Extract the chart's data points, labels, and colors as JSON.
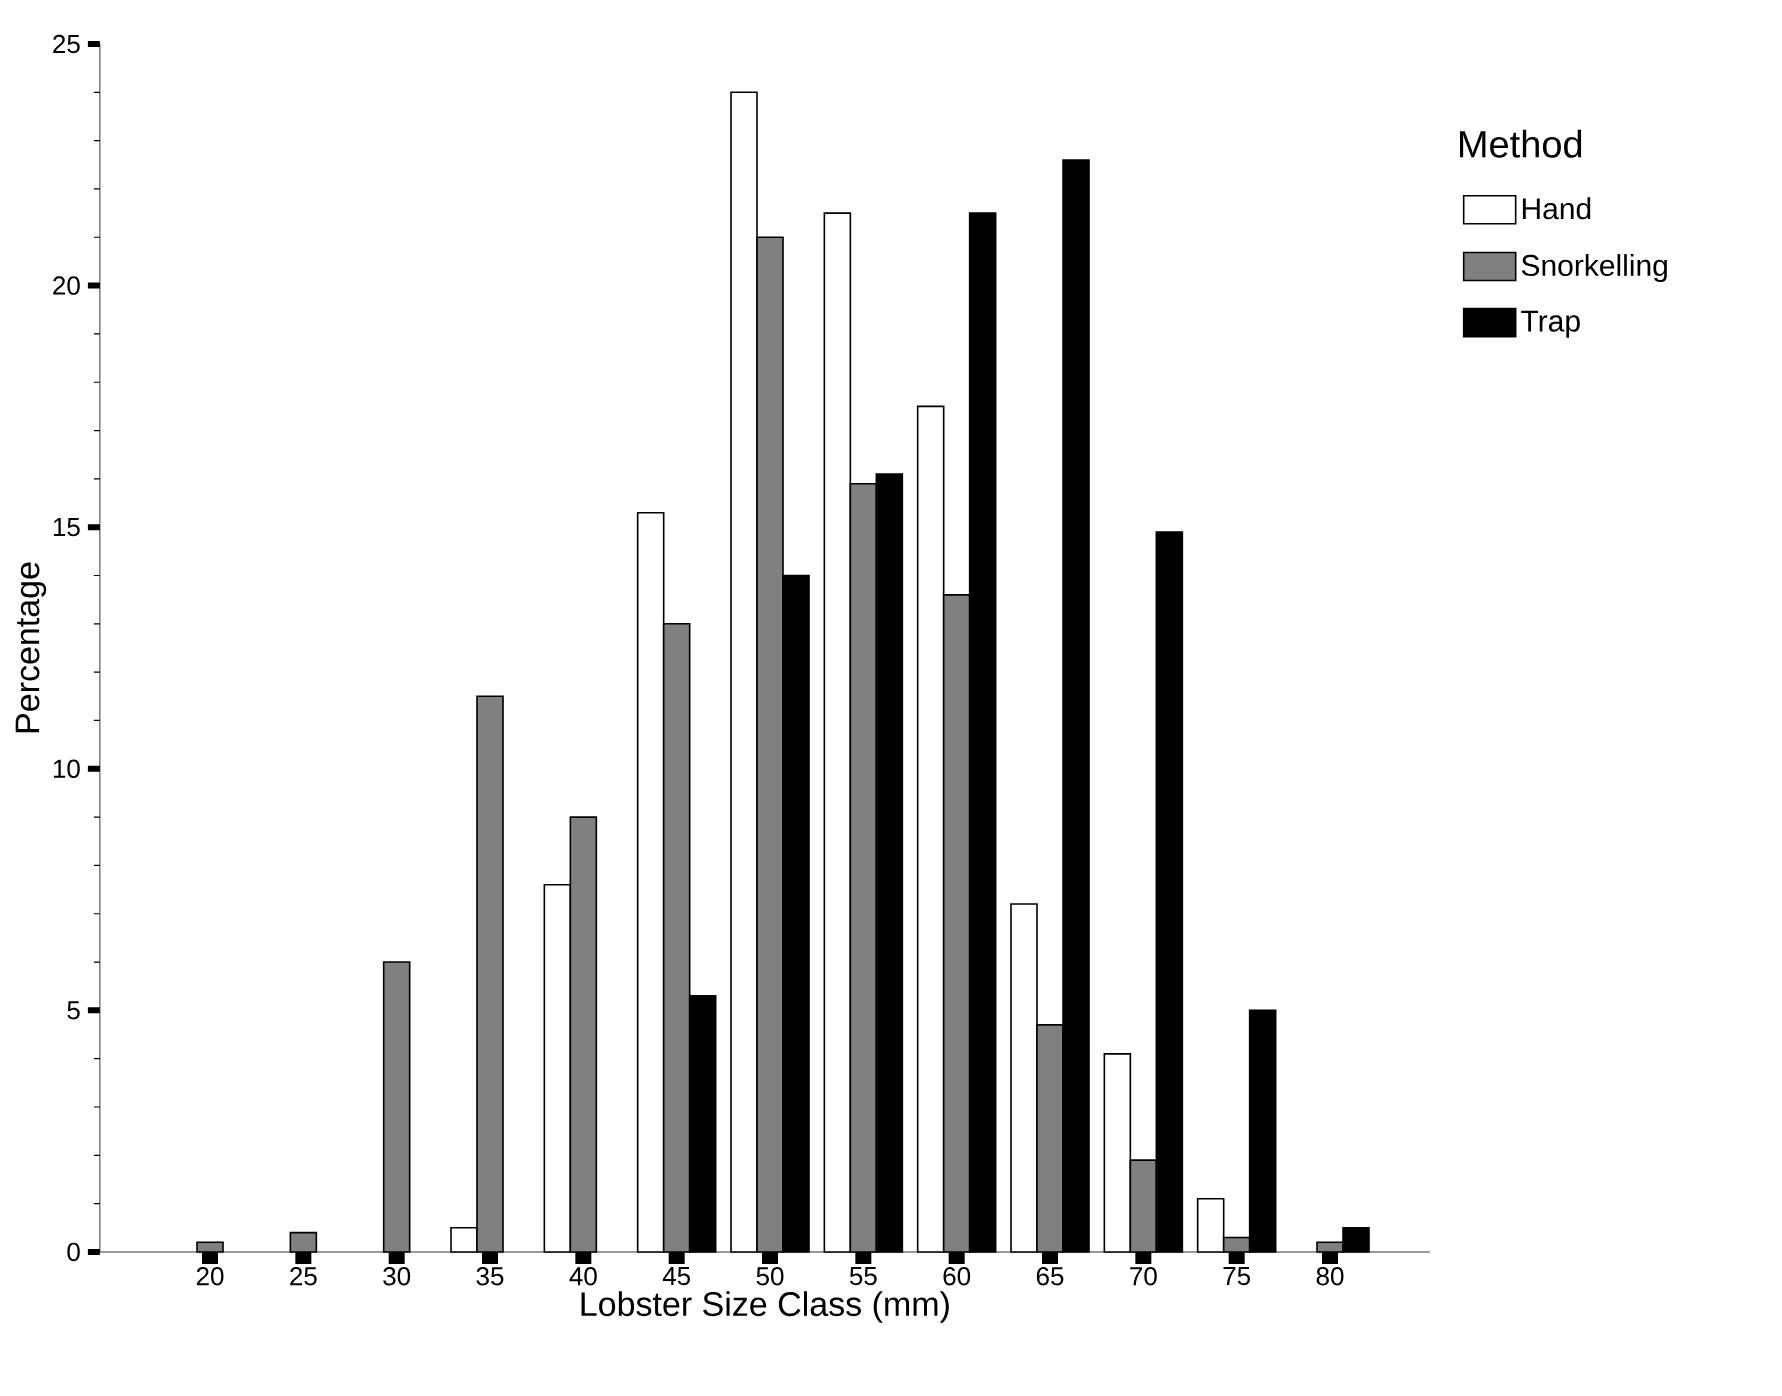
{
  "chart_data": {
    "type": "bar",
    "xlabel": "Lobster Size Class (mm)",
    "ylabel": "Percentage",
    "legend_title": "Method",
    "legend": "right",
    "categories": [
      "20",
      "25",
      "30",
      "35",
      "40",
      "45",
      "50",
      "55",
      "60",
      "65",
      "70",
      "75",
      "80"
    ],
    "series": [
      {
        "name": "Hand",
        "color": "#ffffff",
        "values": [
          null,
          null,
          null,
          0.5,
          7.6,
          15.3,
          24.0,
          21.5,
          17.5,
          7.2,
          4.1,
          1.1,
          null
        ]
      },
      {
        "name": "Snorkelling",
        "color": "#808080",
        "values": [
          0.2,
          0.4,
          6.0,
          11.5,
          9.0,
          13.0,
          21.0,
          15.9,
          13.6,
          4.7,
          1.9,
          0.3,
          0.2
        ]
      },
      {
        "name": "Trap",
        "color": "#000000",
        "values": [
          null,
          null,
          null,
          null,
          null,
          5.3,
          14.0,
          16.1,
          21.5,
          22.6,
          14.9,
          5.0,
          0.5
        ]
      }
    ],
    "ylim": [
      0,
      25
    ],
    "yticks": [
      0,
      5,
      10,
      15,
      20,
      25
    ]
  }
}
